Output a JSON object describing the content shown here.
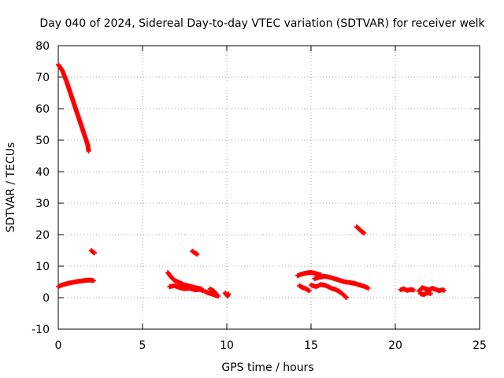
{
  "chart_data": {
    "type": "scatter",
    "title": "Day 040 of 2024, Sidereal Day-to-day VTEC variation (SDTVAR) for receiver welk",
    "xlabel": "GPS time / hours",
    "ylabel": "SDTVAR / TECUs",
    "xlim": [
      0,
      25
    ],
    "ylim": [
      -10,
      80
    ],
    "xticks": [
      0,
      5,
      10,
      15,
      20,
      25
    ],
    "yticks": [
      -10,
      0,
      10,
      20,
      30,
      40,
      50,
      60,
      70,
      80
    ],
    "grid": true,
    "marker": "+",
    "series_color": "#ff0000",
    "segments": [
      {
        "x": [
          0.0,
          0.25,
          0.5,
          0.75,
          1.0,
          1.25,
          1.5,
          1.75,
          1.8
        ],
        "y": [
          74,
          72,
          68.5,
          64.5,
          60.5,
          56.5,
          52.5,
          48.5,
          46.5
        ]
      },
      {
        "x": [
          0.0,
          0.2,
          0.4,
          0.6,
          0.8,
          1.0,
          1.2,
          1.4,
          1.6,
          1.8,
          2.0,
          2.1
        ],
        "y": [
          3.5,
          4.0,
          4.3,
          4.6,
          4.8,
          5.0,
          5.2,
          5.3,
          5.5,
          5.6,
          5.5,
          5.4
        ]
      },
      {
        "x": [
          1.95,
          2.05,
          2.15
        ],
        "y": [
          15.0,
          14.5,
          14.2
        ]
      },
      {
        "x": [
          6.5,
          6.7,
          6.9,
          7.1,
          7.3,
          7.5,
          7.7,
          7.9,
          8.1,
          8.3,
          8.5
        ],
        "y": [
          8.0,
          6.5,
          5.5,
          5.0,
          4.5,
          4.0,
          3.8,
          3.5,
          3.2,
          3.0,
          2.8
        ]
      },
      {
        "x": [
          6.6,
          6.9,
          7.2,
          7.5,
          7.8,
          8.1,
          8.4,
          8.6
        ],
        "y": [
          3.5,
          3.8,
          3.2,
          2.8,
          3.0,
          2.5,
          2.6,
          2.2
        ]
      },
      {
        "x": [
          8.7,
          8.9,
          9.1,
          9.3,
          9.5
        ],
        "y": [
          2.0,
          1.5,
          1.2,
          0.8,
          0.5
        ]
      },
      {
        "x": [
          9.0,
          9.2,
          9.4
        ],
        "y": [
          2.8,
          2.2,
          1.0
        ]
      },
      {
        "x": [
          9.9,
          10.0,
          10.1,
          10.05
        ],
        "y": [
          1.5,
          0.8,
          1.2,
          0.5
        ]
      },
      {
        "x": [
          7.95,
          8.1,
          8.25
        ],
        "y": [
          14.8,
          14.2,
          13.8
        ]
      },
      {
        "x": [
          14.2,
          14.4,
          14.6,
          14.8,
          15.0,
          15.2,
          15.4,
          15.6
        ],
        "y": [
          7.0,
          7.4,
          7.7,
          7.9,
          8.0,
          7.8,
          7.5,
          7.2
        ]
      },
      {
        "x": [
          15.2,
          15.5,
          15.8,
          16.1,
          16.4,
          16.7,
          17.0,
          17.3,
          17.6,
          17.9,
          18.2,
          18.4
        ],
        "y": [
          6.0,
          6.5,
          6.8,
          6.5,
          6.0,
          5.5,
          5.0,
          4.8,
          4.5,
          4.0,
          3.5,
          3.0
        ]
      },
      {
        "x": [
          15.0,
          15.3,
          15.6,
          15.9,
          16.2,
          16.5,
          16.8,
          17.1
        ],
        "y": [
          4.0,
          3.5,
          4.2,
          3.8,
          3.0,
          2.5,
          1.5,
          0.0
        ]
      },
      {
        "x": [
          14.3,
          14.5,
          14.7,
          14.9
        ],
        "y": [
          3.8,
          3.2,
          2.8,
          2.2
        ]
      },
      {
        "x": [
          17.7,
          17.85,
          18.0,
          18.15
        ],
        "y": [
          22.5,
          21.8,
          21.0,
          20.5
        ]
      },
      {
        "x": [
          20.3,
          20.5,
          20.7,
          20.9,
          21.1
        ],
        "y": [
          2.5,
          2.8,
          2.3,
          2.6,
          2.4
        ]
      },
      {
        "x": [
          21.4,
          21.6,
          21.8,
          22.0,
          22.2,
          22.4,
          22.6,
          22.8,
          22.9
        ],
        "y": [
          2.0,
          3.2,
          2.8,
          2.5,
          3.0,
          2.6,
          2.2,
          2.5,
          2.3
        ]
      },
      {
        "x": [
          21.5,
          21.7,
          21.9,
          22.1
        ],
        "y": [
          1.2,
          1.0,
          1.5,
          1.3
        ]
      }
    ]
  }
}
